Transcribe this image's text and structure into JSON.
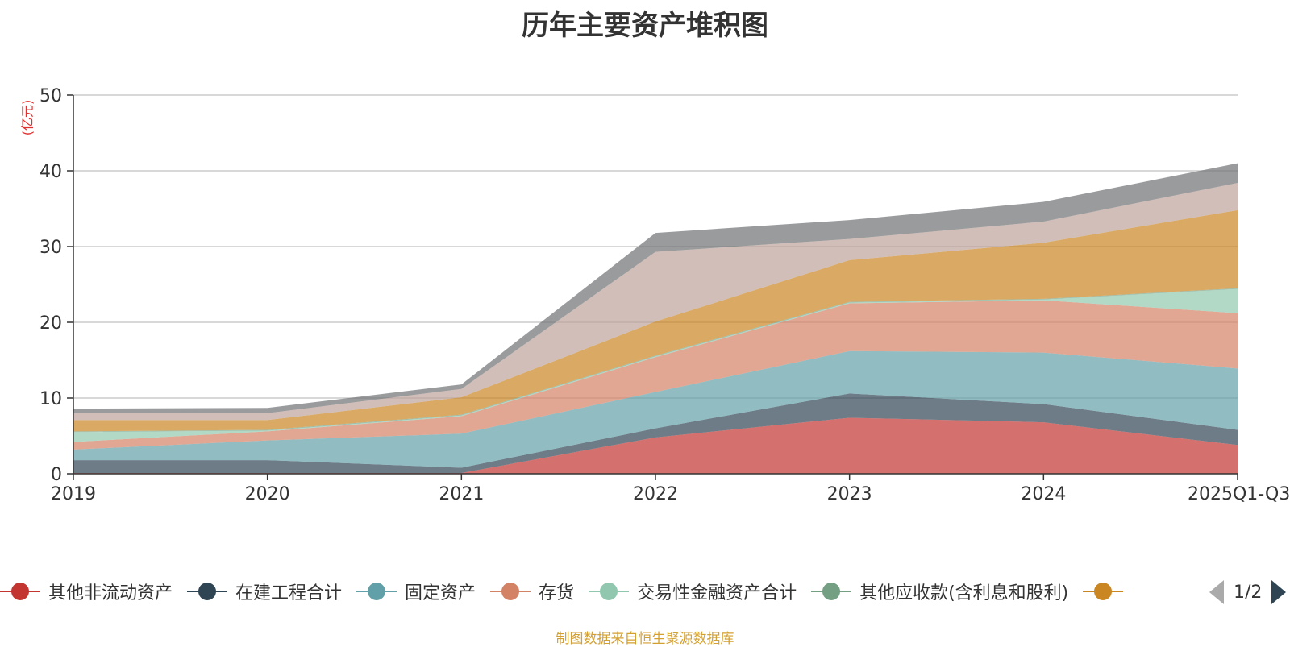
{
  "title": "历年主要资产堆积图",
  "unit": "(亿元)",
  "source": "制图数据来自恒生聚源数据库",
  "pager": "1/2",
  "chart_data": {
    "type": "area",
    "stacked": true,
    "categories": [
      "2019",
      "2020",
      "2021",
      "2022",
      "2023",
      "2024",
      "2025Q1-Q3"
    ],
    "ylim": [
      0,
      50
    ],
    "yticks": [
      "0",
      "10",
      "20",
      "30",
      "40",
      "50"
    ],
    "series": [
      {
        "name": "其他非流动资产",
        "color": "#c23531",
        "values": [
          0.1,
          0.1,
          0.1,
          4.8,
          7.4,
          6.8,
          3.8
        ]
      },
      {
        "name": "在建工程合计",
        "color": "#2f4554",
        "values": [
          1.7,
          1.7,
          0.7,
          1.2,
          3.2,
          2.4,
          2.0
        ]
      },
      {
        "name": "固定资产",
        "color": "#61a0a8",
        "values": [
          1.4,
          2.6,
          4.5,
          4.8,
          5.6,
          6.8,
          8.1
        ]
      },
      {
        "name": "存货",
        "color": "#d48265",
        "values": [
          1.0,
          1.2,
          2.3,
          4.6,
          6.3,
          6.9,
          7.3
        ]
      },
      {
        "name": "交易性金融资产合计",
        "color": "#91c7ae",
        "values": [
          1.3,
          0.1,
          0.1,
          0.1,
          0.1,
          0.1,
          3.2
        ]
      },
      {
        "name": "其他应收款(含利息和股利)",
        "color": "#749f83",
        "values": [
          0.1,
          0.1,
          0.1,
          0.1,
          0.1,
          0.1,
          0.1
        ]
      },
      {
        "name": "",
        "color": "#ca8622",
        "values": [
          1.5,
          1.3,
          2.3,
          4.5,
          5.5,
          7.4,
          10.3
        ]
      },
      {
        "name": "",
        "color": "#bda29a",
        "values": [
          0.9,
          0.9,
          1.1,
          9.2,
          2.8,
          2.8,
          3.6
        ]
      },
      {
        "name": "",
        "color": "#6e7074",
        "values": [
          0.6,
          0.7,
          0.6,
          2.5,
          2.5,
          2.6,
          2.6
        ]
      }
    ]
  },
  "legend": [
    {
      "label": "其他非流动资产",
      "color": "#c23531"
    },
    {
      "label": "在建工程合计",
      "color": "#2f4554"
    },
    {
      "label": "固定资产",
      "color": "#61a0a8"
    },
    {
      "label": "存货",
      "color": "#d48265"
    },
    {
      "label": "交易性金融资产合计",
      "color": "#91c7ae"
    },
    {
      "label": "其他应收款(含利息和股利)",
      "color": "#749f83"
    },
    {
      "label": "",
      "color": "#ca8622"
    }
  ]
}
